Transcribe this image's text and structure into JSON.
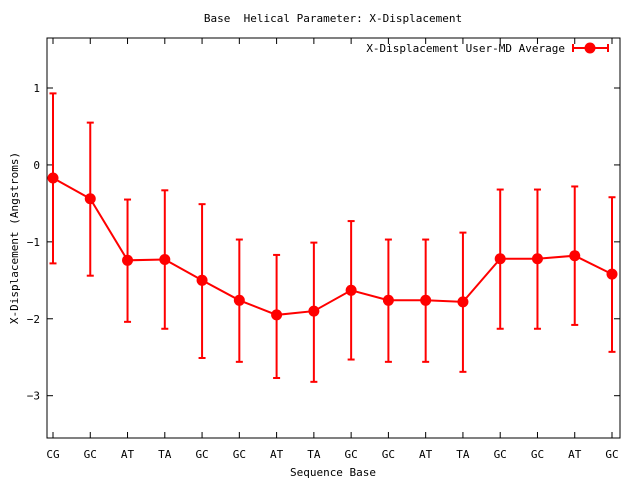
{
  "chart_data": {
    "type": "line",
    "title": "Base  Helical Parameter: X-Displacement",
    "xlabel": "Sequence Base",
    "ylabel": "X-Displacement (Angstroms)",
    "ylim": [
      -3.55,
      1.65
    ],
    "yticks": [
      1,
      0,
      -1,
      -2,
      -3
    ],
    "ytick_labels": [
      "1",
      "0",
      "−1",
      "−2",
      "−3"
    ],
    "categories": [
      "CG",
      "GC",
      "AT",
      "TA",
      "GC",
      "GC",
      "AT",
      "TA",
      "GC",
      "GC",
      "AT",
      "TA",
      "GC",
      "GC",
      "AT",
      "GC"
    ],
    "legend_position": "top-right",
    "grid": false,
    "series": [
      {
        "name": "X-Displacement User-MD Average",
        "color": "#ff0000",
        "values": [
          -0.17,
          -0.44,
          -1.24,
          -1.23,
          -1.5,
          -1.76,
          -1.95,
          -1.9,
          -1.63,
          -1.76,
          -1.76,
          -1.78,
          -1.22,
          -1.22,
          -1.18,
          -1.42
        ],
        "err_low": [
          -1.28,
          -1.44,
          -2.04,
          -2.13,
          -2.51,
          -2.56,
          -2.77,
          -2.82,
          -2.53,
          -2.56,
          -2.56,
          -2.69,
          -2.13,
          -2.13,
          -2.08,
          -2.43
        ],
        "err_high": [
          0.93,
          0.55,
          -0.45,
          -0.33,
          -0.51,
          -0.97,
          -1.17,
          -1.01,
          -0.73,
          -0.97,
          -0.97,
          -0.88,
          -0.32,
          -0.32,
          -0.28,
          -0.42
        ]
      }
    ]
  }
}
